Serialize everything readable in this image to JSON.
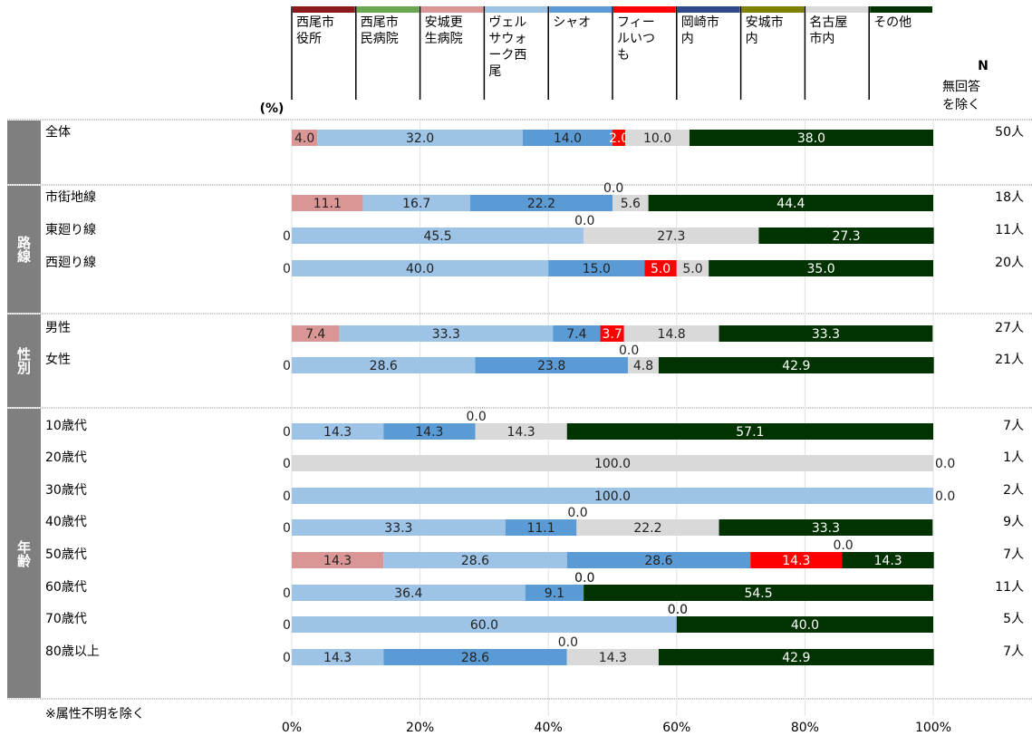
{
  "chart_data": {
    "type": "stacked-bar-horizontal",
    "unit_label": "(%)",
    "n_header": "N",
    "n_subheader": "無回答を除く",
    "footnote": "※属性不明を除く",
    "groups": [
      "路線",
      "性別",
      "年齢"
    ],
    "categories": [
      "全体",
      "市街地線",
      "東廻り線",
      "西廻り線",
      "男性",
      "女性",
      "10歳代",
      "20歳代",
      "30歳代",
      "40歳代",
      "50歳代",
      "60歳代",
      "70歳代",
      "80歳以上"
    ],
    "n_labels": [
      "50人",
      "18人",
      "11人",
      "20人",
      "27人",
      "21人",
      "7人",
      "1人",
      "2人",
      "9人",
      "7人",
      "11人",
      "5人",
      "7人"
    ],
    "xlim": [
      0,
      100
    ],
    "xticks": [
      {
        "value": 0,
        "label": "0%"
      },
      {
        "value": 20,
        "label": "20%"
      },
      {
        "value": 40,
        "label": "40%"
      },
      {
        "value": 60,
        "label": "60%"
      },
      {
        "value": 80,
        "label": "80%"
      },
      {
        "value": 100,
        "label": "100%"
      }
    ],
    "grid": true,
    "series": [
      {
        "name": "西尾市役所",
        "color": "#8b1a1a",
        "values": [
          null,
          null,
          null,
          null,
          null,
          null,
          null,
          null,
          null,
          null,
          null,
          null,
          null,
          null
        ]
      },
      {
        "name": "西尾市民病院",
        "color": "#6aa84f",
        "values": [
          null,
          null,
          null,
          null,
          null,
          null,
          null,
          null,
          null,
          null,
          null,
          null,
          null,
          null
        ]
      },
      {
        "name": "安城更生病院",
        "color": "#d99694",
        "values": [
          4,
          11.1,
          0,
          0,
          7.4,
          0,
          0,
          0,
          0,
          0,
          14.3,
          0,
          0,
          0
        ],
        "value_labels": [
          "4.0",
          "11.1",
          "0.0",
          "0.0",
          "7.4",
          "0.0",
          "0.0",
          "0.0",
          "0.0",
          "0.0",
          "14.3",
          "0.0",
          "0.0",
          "0.0"
        ]
      },
      {
        "name": "ヴェルサウォーク西尾",
        "color": "#9dc3e6",
        "values": [
          32,
          16.7,
          45.5,
          40,
          33.3,
          28.6,
          14.3,
          null,
          100,
          33.3,
          28.6,
          36.4,
          60,
          14.3
        ],
        "value_labels": [
          "32.0",
          "16.7",
          "45.5",
          "40.0",
          "33.3",
          "28.6",
          "14.3",
          null,
          "100.0",
          "33.3",
          "28.6",
          "36.4",
          "60.0",
          "14.3"
        ]
      },
      {
        "name": "シャオ",
        "color": "#5b9bd5",
        "values": [
          14,
          22.2,
          0,
          15,
          7.4,
          23.8,
          14.3,
          null,
          0,
          11.1,
          28.6,
          9.1,
          0,
          28.6
        ],
        "value_labels": [
          "14.0",
          "22.2",
          "0.0",
          "15.0",
          "7.4",
          "23.8",
          "14.3",
          null,
          "0.0",
          "11.1",
          "28.6",
          "9.1",
          "0.0",
          "28.6"
        ]
      },
      {
        "name": "フィールいつも",
        "color": "#ff0000",
        "values": [
          2,
          0,
          null,
          5,
          3.7,
          0,
          0,
          null,
          null,
          0,
          14.3,
          0,
          null,
          0
        ],
        "value_labels": [
          "2.0",
          "0.0",
          null,
          "5.0",
          "3.7",
          "0.0",
          "0.0",
          null,
          null,
          "0.0",
          "14.3",
          "0.0",
          null,
          "0.0"
        ]
      },
      {
        "name": "岡崎市内",
        "color": "#2f4a8a",
        "values": [
          null,
          null,
          null,
          null,
          null,
          null,
          null,
          null,
          null,
          null,
          null,
          null,
          null,
          null
        ]
      },
      {
        "name": "安城市内",
        "color": "#7f7f00",
        "values": [
          null,
          null,
          null,
          null,
          null,
          null,
          null,
          null,
          null,
          null,
          null,
          null,
          null,
          null
        ]
      },
      {
        "name": "名古屋市内",
        "color": "#d9d9d9",
        "values": [
          10,
          5.6,
          27.3,
          5,
          14.8,
          4.8,
          14.3,
          100,
          null,
          22.2,
          0,
          0,
          0,
          14.3
        ],
        "value_labels": [
          "10.0",
          "5.6",
          "27.3",
          "5.0",
          "14.8",
          "4.8",
          "14.3",
          "100.0",
          null,
          "22.2",
          "0.0",
          "0.0",
          "0.0",
          "14.3"
        ]
      },
      {
        "name": "その他",
        "color": "#003300",
        "values": [
          38,
          44.4,
          27.3,
          35,
          33.3,
          42.9,
          57.1,
          0,
          null,
          33.3,
          14.3,
          54.5,
          40,
          42.9
        ],
        "value_labels": [
          "38.0",
          "44.4",
          "27.3",
          "35.0",
          "33.3",
          "42.9",
          "57.1",
          "0.0",
          null,
          "33.3",
          "14.3",
          "54.5",
          "40.0",
          "42.9"
        ]
      }
    ]
  }
}
